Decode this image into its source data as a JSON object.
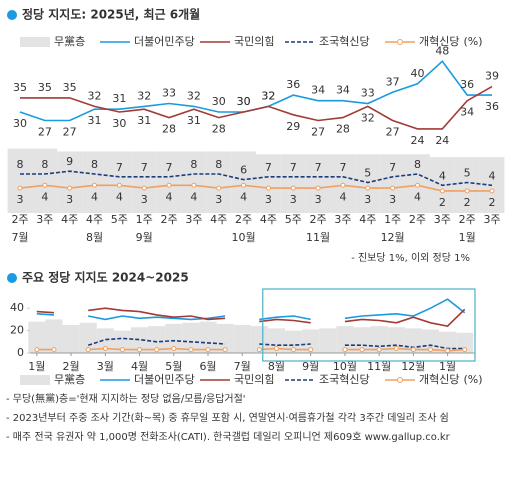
{
  "chart_data": [
    {
      "type": "line",
      "title": "정당 지지도: 2025년, 최근 6개월",
      "categories": [
        "2주",
        "3주",
        "4주",
        "4주",
        "5주",
        "1주",
        "2주",
        "3주",
        "4주",
        "2주",
        "4주",
        "5주",
        "2주",
        "3주",
        "4주",
        "1주",
        "2주",
        "3주",
        "2주",
        "3주"
      ],
      "months": [
        "7월",
        null,
        null,
        "8월",
        null,
        "9월",
        null,
        null,
        null,
        "10월",
        null,
        null,
        "11월",
        null,
        null,
        "12월",
        null,
        null,
        "1월",
        null
      ],
      "ylim": [
        -3,
        52
      ],
      "legend_unit": "(%)",
      "note": "- 진보당 1%, 이외 정당 1%",
      "series": [
        {
          "name": "무黨층",
          "kind": "area",
          "color": "#e3e3e3",
          "values": [
            17,
            17,
            16,
            16,
            16,
            16,
            16,
            16,
            16,
            16,
            15,
            15,
            15,
            15,
            15,
            15,
            15,
            14,
            14,
            14
          ]
        },
        {
          "name": "더불어민주당",
          "color": "#1a9ae0",
          "labels": true,
          "values": [
            30,
            27,
            27,
            31,
            31,
            32,
            33,
            32,
            30,
            30,
            32,
            36,
            34,
            34,
            33,
            37,
            40,
            48,
            36,
            36
          ]
        },
        {
          "name": "국민의힘",
          "color": "#a23a38",
          "labels": true,
          "values": [
            35,
            35,
            35,
            32,
            30,
            31,
            28,
            31,
            28,
            30,
            32,
            29,
            27,
            28,
            32,
            27,
            24,
            24,
            34,
            39
          ]
        },
        {
          "name": "조국혁신당",
          "color": "#1d3c7a",
          "dash": true,
          "labels": true,
          "values": [
            8,
            8,
            9,
            8,
            7,
            7,
            7,
            8,
            8,
            6,
            7,
            7,
            7,
            7,
            5,
            7,
            8,
            4,
            5,
            4
          ]
        },
        {
          "name": "개혁신당",
          "color": "#f0a060",
          "markers": true,
          "labels": true,
          "values": [
            3,
            4,
            3,
            4,
            4,
            3,
            4,
            4,
            3,
            4,
            3,
            3,
            3,
            4,
            3,
            3,
            4,
            2,
            2,
            2
          ]
        }
      ]
    },
    {
      "type": "line",
      "title": "주요 정당 지지도 2024~2025",
      "x": [
        0,
        0.5,
        1,
        1.5,
        2,
        2.5,
        3,
        3.5,
        4,
        4.5,
        5,
        5.5,
        6,
        6.5,
        7,
        7.5,
        8,
        8.5,
        9,
        9.5,
        10,
        10.5,
        11,
        11.5,
        12,
        12.5
      ],
      "xlim": [
        -0.2,
        12.8
      ],
      "xticks": [
        {
          "value": 0,
          "label": "1월"
        },
        {
          "value": 1,
          "label": "2월"
        },
        {
          "value": 2,
          "label": "3월"
        },
        {
          "value": 3,
          "label": "4월"
        },
        {
          "value": 4,
          "label": "5월"
        },
        {
          "value": 5,
          "label": "6월"
        },
        {
          "value": 6,
          "label": "7월"
        },
        {
          "value": 7,
          "label": "8월"
        },
        {
          "value": 8,
          "label": "9월"
        },
        {
          "value": 9,
          "label": "10월"
        },
        {
          "value": 10,
          "label": "11월"
        },
        {
          "value": 11,
          "label": "12월"
        },
        {
          "value": 12,
          "label": "1월"
        }
      ],
      "ylim": [
        0,
        50
      ],
      "yticks": [
        0,
        20,
        40
      ],
      "grid": false,
      "highlight_xlim": [
        6.6,
        12.8
      ],
      "legend_unit": "(%)",
      "series": [
        {
          "name": "무黨층",
          "kind": "area",
          "color": "#e3e3e3",
          "values": [
            28,
            30,
            25,
            27,
            22,
            20,
            23,
            24,
            26,
            27,
            28,
            26,
            25,
            24,
            22,
            20,
            21,
            22,
            24,
            23,
            24,
            23,
            22,
            21,
            19,
            18
          ]
        },
        {
          "name": "더불어민주당",
          "color": "#1a9ae0",
          "values": [
            35,
            34,
            null,
            33,
            30,
            33,
            31,
            32,
            31,
            30,
            31,
            33,
            null,
            30,
            32,
            33,
            30,
            null,
            31,
            33,
            34,
            35,
            33,
            40,
            48,
            36
          ]
        },
        {
          "name": "국민의힘",
          "color": "#a23a38",
          "values": [
            37,
            36,
            null,
            38,
            40,
            38,
            37,
            34,
            32,
            33,
            30,
            31,
            null,
            28,
            30,
            29,
            27,
            null,
            28,
            30,
            29,
            27,
            32,
            27,
            24,
            39
          ]
        },
        {
          "name": "조국혁신당",
          "color": "#1d3c7a",
          "dash": true,
          "values": [
            null,
            null,
            null,
            7,
            12,
            13,
            12,
            10,
            11,
            10,
            9,
            8,
            null,
            8,
            7,
            7,
            8,
            null,
            7,
            7,
            6,
            7,
            5,
            7,
            4,
            4
          ]
        },
        {
          "name": "개혁신당",
          "color": "#f0a060",
          "markers": true,
          "values": [
            3,
            3,
            null,
            3,
            4,
            3,
            3,
            3,
            4,
            3,
            3,
            3,
            null,
            3,
            4,
            3,
            3,
            null,
            3,
            3,
            3,
            4,
            3,
            3,
            2,
            3
          ]
        }
      ]
    }
  ],
  "notes": [
    "- 무당(無黨)층='현재 지지하는 정당 없음/모름/응답거절'",
    "- 2023년부터 주중 조사 기간(화~목) 중 휴무일 포함 시, 연말연시·여름휴가철 각각 3주간 데일리 조사 쉼",
    "- 매주 전국 유권자 약 1,000명 전화조사(CATI). 한국갤럽 데일리 오피니언 제609호 www.gallup.co.kr"
  ]
}
